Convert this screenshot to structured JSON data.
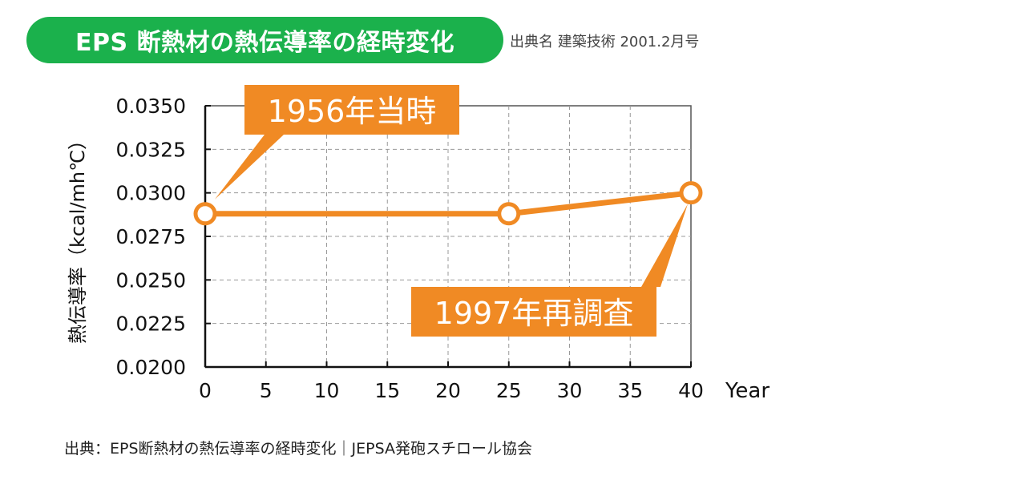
{
  "header": {
    "title": "EPS 断熱材の熱伝導率の経時変化",
    "source": "出典名 建築技術 2001.2月号"
  },
  "chart_data": {
    "type": "line",
    "title": "EPS 断熱材の熱伝導率の経時変化",
    "xlabel": "Year",
    "ylabel": "熱伝導率（kcal/mh℃）",
    "xlim": [
      0,
      40
    ],
    "ylim": [
      0.02,
      0.035
    ],
    "xticks": [
      "0",
      "5",
      "10",
      "15",
      "20",
      "25",
      "30",
      "35",
      "40"
    ],
    "yticks": [
      "0.0200",
      "0.0225",
      "0.0250",
      "0.0275",
      "0.0300",
      "0.0325",
      "0.0350"
    ],
    "grid": true,
    "series": [
      {
        "name": "熱伝導率",
        "x": [
          0,
          25,
          40
        ],
        "y": [
          0.0288,
          0.0288,
          0.03
        ]
      }
    ],
    "annotations": [
      {
        "text": "1956年当時",
        "x": 0,
        "y": 0.0288
      },
      {
        "text": "1997年再調査",
        "x": 40,
        "y": 0.03
      }
    ],
    "line_color": "#f08a24"
  },
  "footer": {
    "text": "出典：EPS断熱材の熱伝導率の経時変化｜JEPSA発砲スチロール協会"
  }
}
